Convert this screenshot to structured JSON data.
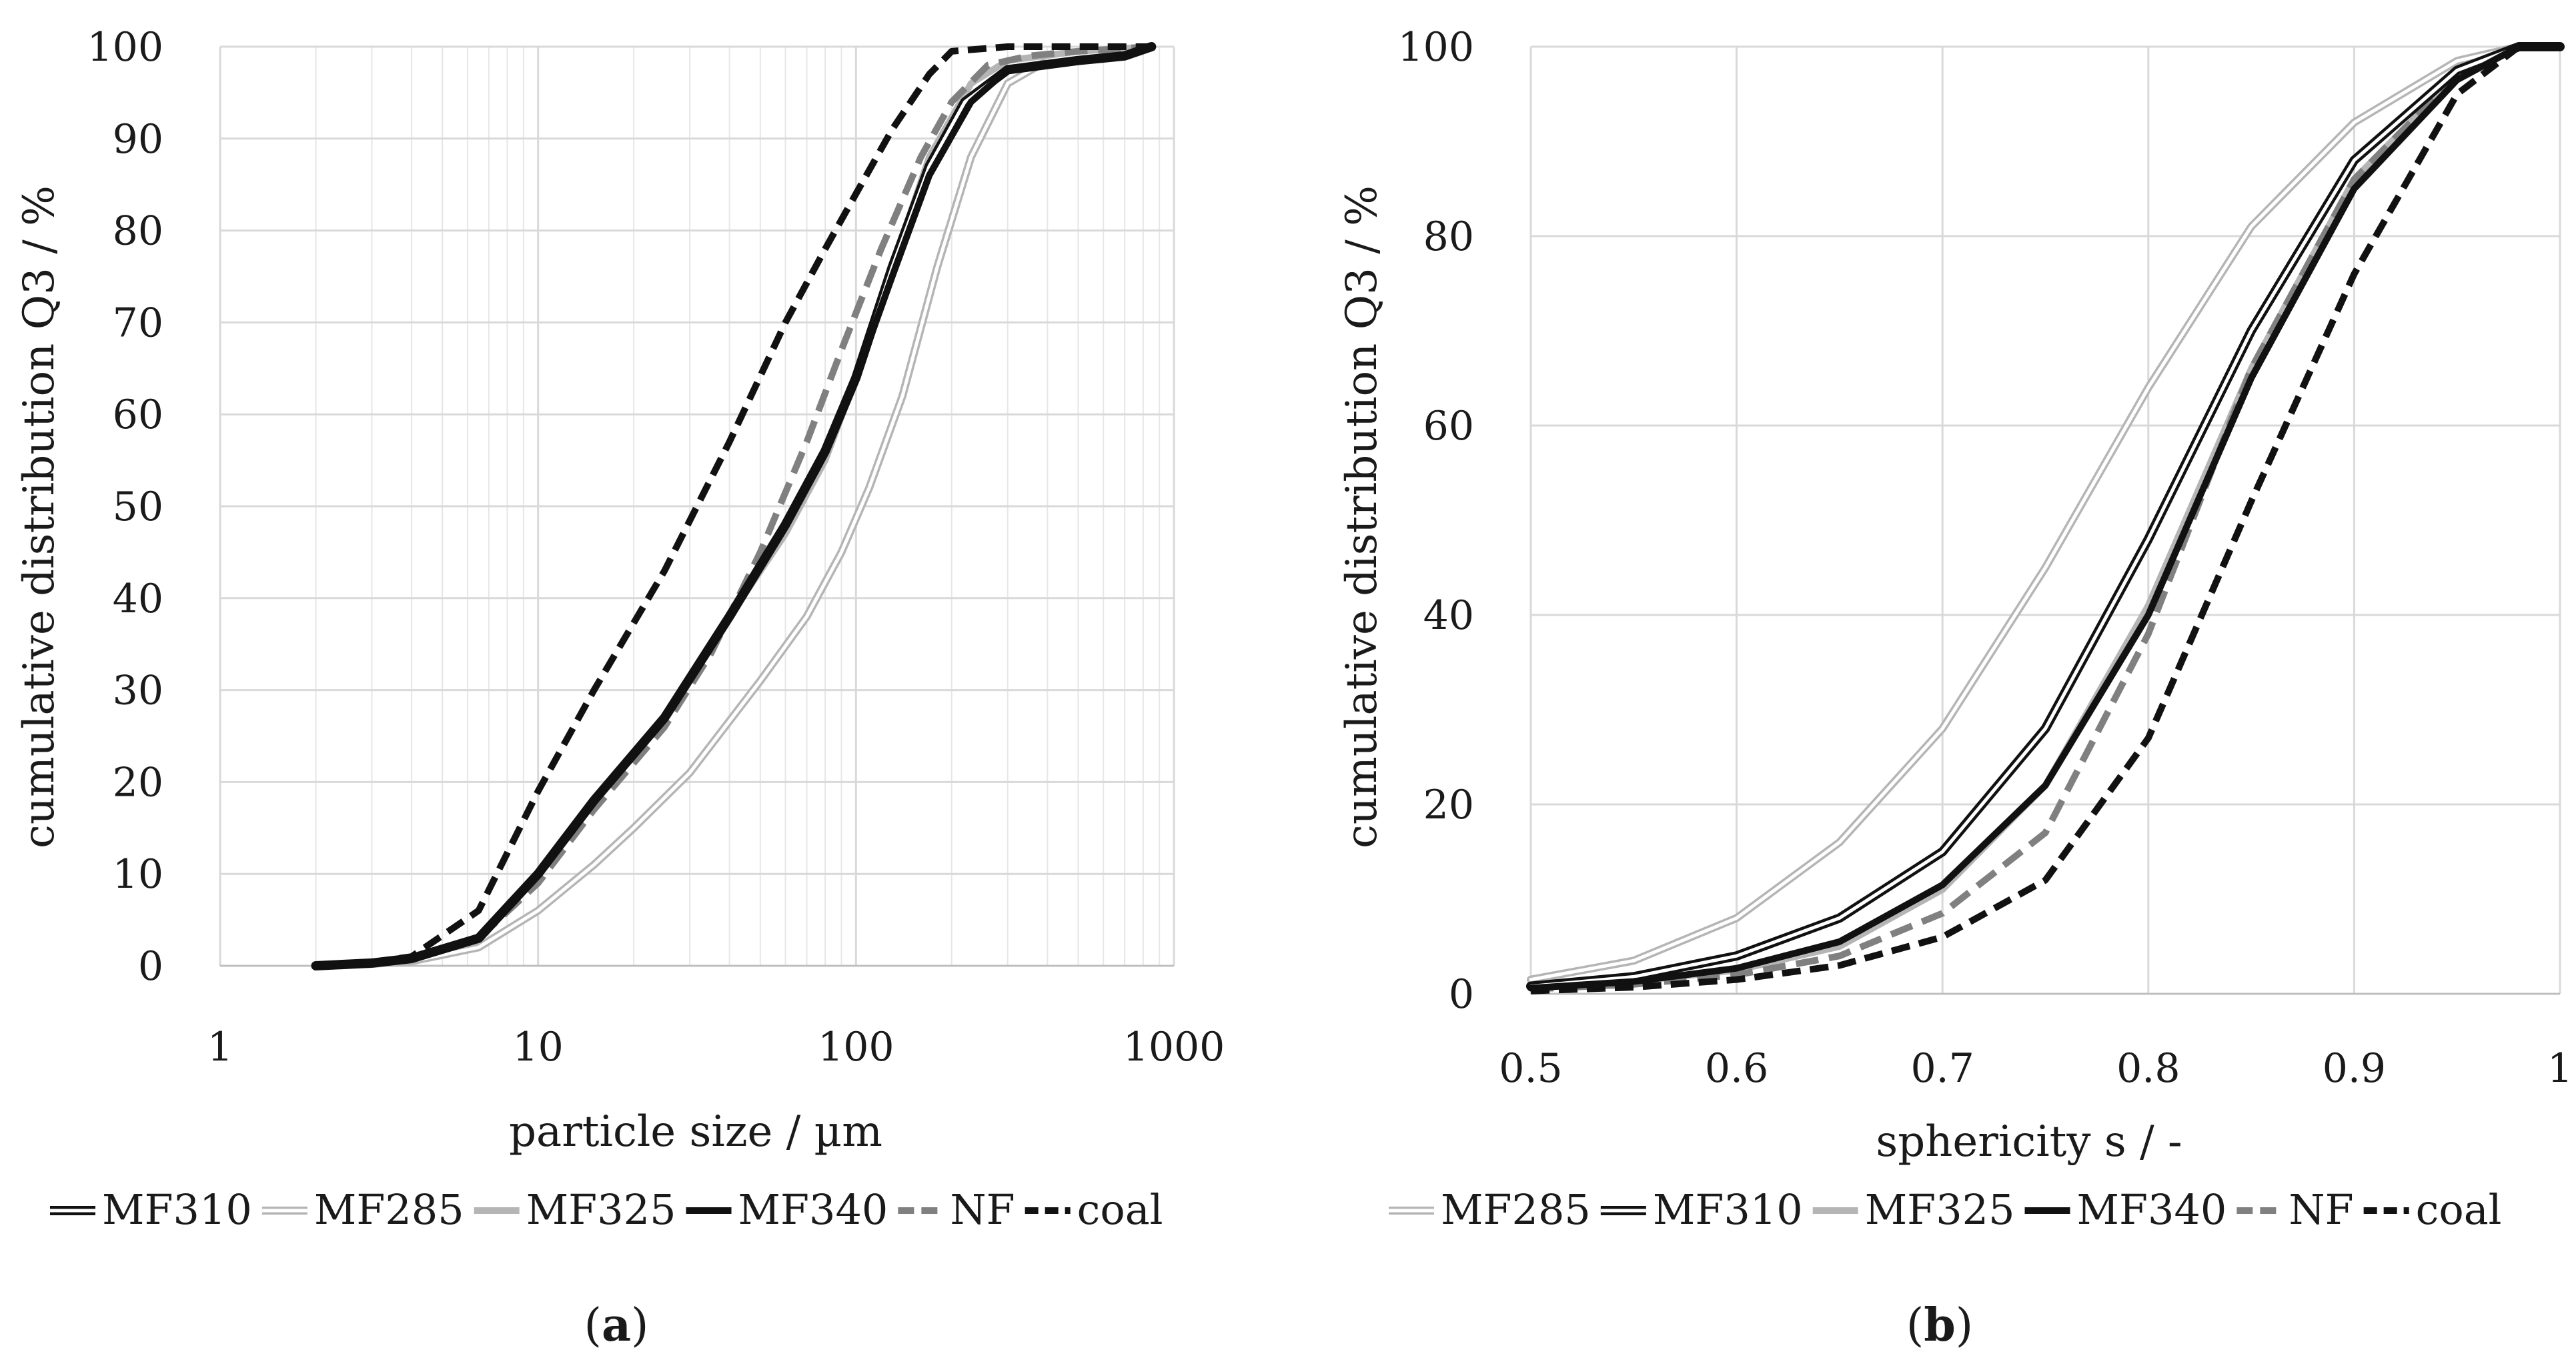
{
  "chart_data": [
    {
      "id": "a",
      "type": "line",
      "panel_label": "a",
      "xlabel": "particle size / µm",
      "ylabel": "cumulative distribution Q3 / %",
      "x_scale": "log",
      "xlim": [
        1,
        1000
      ],
      "ylim": [
        0,
        100
      ],
      "x_ticks": [
        1,
        10,
        100,
        1000
      ],
      "x_tick_labels": [
        "1",
        "10",
        "100",
        "1000"
      ],
      "y_ticks": [
        0,
        10,
        20,
        30,
        40,
        50,
        60,
        70,
        80,
        90,
        100
      ],
      "y_tick_labels": [
        "0",
        "10",
        "20",
        "30",
        "40",
        "50",
        "60",
        "70",
        "80",
        "90",
        "100"
      ],
      "grid": "major and minor vertical, major horizontal",
      "legend_position": "bottom",
      "series": [
        {
          "name": "MF310",
          "style": "double-black",
          "x": [
            2,
            3,
            4,
            6.5,
            10,
            15,
            25,
            40,
            60,
            80,
            100,
            130,
            170,
            220,
            300,
            500,
            700,
            850
          ],
          "y": [
            0,
            0.3,
            0.8,
            3,
            10,
            18,
            27,
            38,
            48,
            56,
            64,
            76,
            87,
            94,
            97.5,
            98.5,
            99,
            100
          ]
        },
        {
          "name": "MF285",
          "style": "double-light",
          "x": [
            2,
            3,
            4,
            6.5,
            10,
            15,
            20,
            30,
            50,
            70,
            90,
            110,
            140,
            180,
            230,
            300,
            400,
            600,
            850
          ],
          "y": [
            0,
            0.2,
            0.5,
            2,
            6,
            11,
            15,
            21,
            31,
            38,
            45,
            52,
            62,
            76,
            88,
            96,
            98.5,
            99.5,
            100
          ]
        },
        {
          "name": "MF325",
          "style": "solid-gray",
          "x": [
            2,
            3,
            4,
            6.5,
            10,
            15,
            25,
            40,
            60,
            80,
            100,
            130,
            170,
            230,
            300,
            500,
            850
          ],
          "y": [
            0,
            0.3,
            0.8,
            3,
            10,
            18,
            27,
            38,
            47,
            55,
            64,
            76,
            88,
            96,
            98.5,
            99.5,
            100
          ]
        },
        {
          "name": "MF340",
          "style": "solid-black",
          "x": [
            2,
            3,
            4,
            6.5,
            10,
            15,
            25,
            40,
            60,
            80,
            100,
            130,
            170,
            230,
            300,
            500,
            700,
            850
          ],
          "y": [
            0,
            0.3,
            0.8,
            3,
            10,
            18,
            27,
            38,
            48,
            56,
            64,
            75,
            86,
            94,
            97.5,
            98.5,
            99,
            100
          ]
        },
        {
          "name": "NF",
          "style": "dash-gray",
          "x": [
            2,
            3,
            4,
            6.5,
            10,
            15,
            25,
            35,
            50,
            70,
            90,
            120,
            160,
            200,
            260,
            350,
            500,
            850
          ],
          "y": [
            0,
            0.3,
            0.8,
            3,
            9,
            17,
            26,
            34,
            45,
            57,
            67,
            78,
            88,
            94,
            98,
            99,
            99.5,
            100
          ]
        },
        {
          "name": "coal",
          "style": "dash-black",
          "x": [
            2,
            3,
            4,
            6.5,
            10,
            15,
            25,
            40,
            60,
            80,
            100,
            130,
            170,
            200,
            300,
            500,
            850
          ],
          "y": [
            0,
            0.4,
            1,
            6,
            19,
            30,
            43,
            57,
            70,
            78,
            84,
            91,
            97,
            99.5,
            100,
            100,
            100
          ]
        }
      ]
    },
    {
      "id": "b",
      "type": "line",
      "panel_label": "b",
      "xlabel": "sphericity s / -",
      "ylabel": "cumulative distribution Q3 / %",
      "xlim": [
        0.5,
        1
      ],
      "ylim": [
        0,
        100
      ],
      "x_ticks": [
        0.5,
        0.6,
        0.7,
        0.8,
        0.9,
        1
      ],
      "x_tick_labels": [
        "0.5",
        "0.6",
        "0.7",
        "0.8",
        "0.9",
        "1"
      ],
      "y_ticks": [
        0,
        20,
        40,
        60,
        80,
        100
      ],
      "y_tick_labels": [
        "0",
        "20",
        "40",
        "60",
        "80",
        "100"
      ],
      "grid": "major vertical and horizontal",
      "legend_position": "bottom",
      "series": [
        {
          "name": "MF285",
          "style": "double-light",
          "x": [
            0.5,
            0.55,
            0.6,
            0.65,
            0.7,
            0.75,
            0.8,
            0.85,
            0.9,
            0.95,
            0.98,
            1.0
          ],
          "y": [
            1.5,
            3.5,
            8,
            16,
            28,
            45,
            64,
            81,
            92,
            98.5,
            100,
            100
          ]
        },
        {
          "name": "MF310",
          "style": "double-black",
          "x": [
            0.5,
            0.55,
            0.6,
            0.65,
            0.7,
            0.75,
            0.8,
            0.85,
            0.9,
            0.95,
            0.98,
            1.0
          ],
          "y": [
            0.8,
            1.8,
            4,
            8,
            15,
            28,
            48,
            70,
            88,
            97.5,
            100,
            100
          ]
        },
        {
          "name": "MF325",
          "style": "solid-gray",
          "x": [
            0.5,
            0.55,
            0.6,
            0.65,
            0.7,
            0.75,
            0.8,
            0.85,
            0.9,
            0.95,
            0.98,
            1.0
          ],
          "y": [
            0.6,
            1.3,
            2.5,
            5,
            11,
            22,
            41,
            66,
            86,
            97,
            100,
            100
          ]
        },
        {
          "name": "MF340",
          "style": "solid-black",
          "x": [
            0.5,
            0.55,
            0.6,
            0.65,
            0.7,
            0.75,
            0.8,
            0.85,
            0.9,
            0.95,
            0.98,
            1.0
          ],
          "y": [
            0.6,
            1.3,
            2.7,
            5.5,
            11.5,
            22,
            40,
            65,
            85,
            96.5,
            100,
            100
          ]
        },
        {
          "name": "NF",
          "style": "dash-gray",
          "x": [
            0.5,
            0.55,
            0.6,
            0.65,
            0.7,
            0.75,
            0.8,
            0.85,
            0.9,
            0.95,
            0.98,
            1.0
          ],
          "y": [
            0.5,
            1,
            2,
            4,
            8.5,
            17,
            38,
            66,
            86,
            97,
            100,
            100
          ]
        },
        {
          "name": "coal",
          "style": "dash-black",
          "x": [
            0.5,
            0.55,
            0.6,
            0.65,
            0.7,
            0.75,
            0.8,
            0.85,
            0.9,
            0.95,
            0.98,
            1.0
          ],
          "y": [
            0.3,
            0.7,
            1.5,
            3,
            6,
            12,
            27,
            52,
            76,
            95,
            100,
            100
          ]
        }
      ]
    }
  ],
  "colors": {
    "black": "#111111",
    "dark_gray": "#808080",
    "light_gray": "#b5b5b5",
    "grid": "#d9d9d9",
    "white": "#ffffff"
  }
}
